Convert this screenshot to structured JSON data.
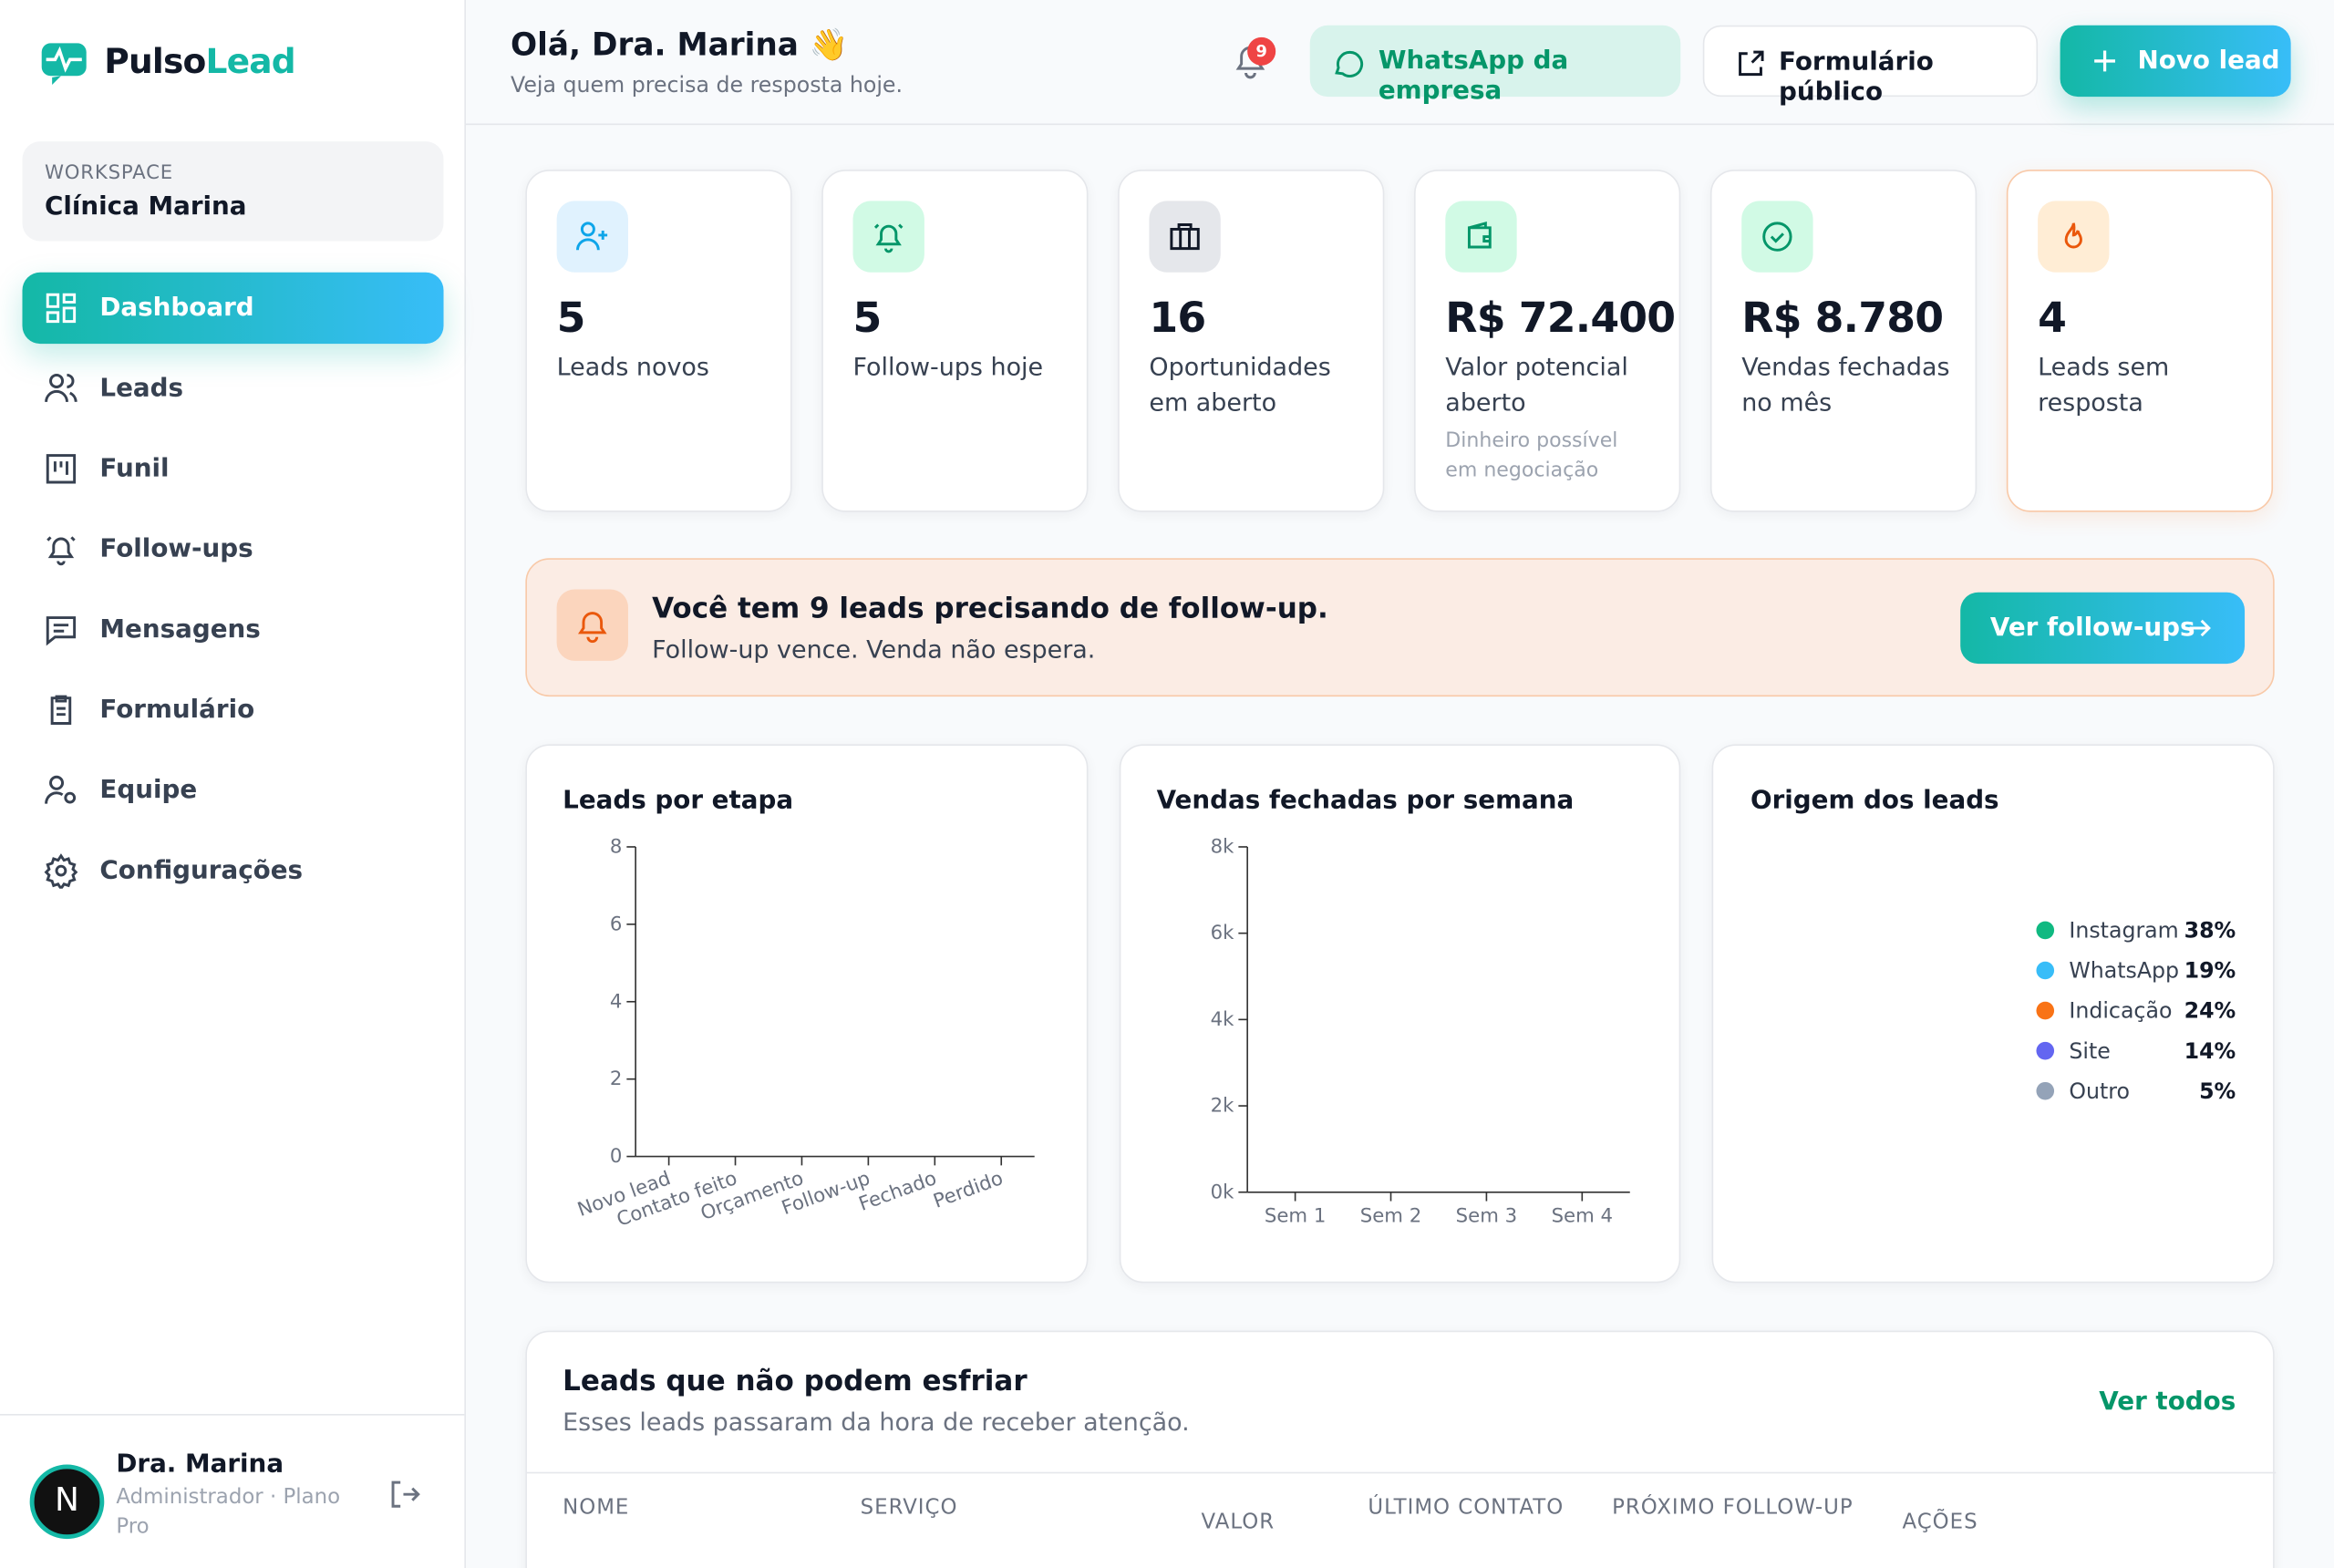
{
  "sidebar": {
    "brand_a": "Pulso",
    "brand_b": "Lead",
    "workspace_label": "WORKSPACE",
    "workspace": "Clínica Marina",
    "nav": [
      "Dashboard",
      "Leads",
      "Funil",
      "Follow-ups",
      "Mensagens",
      "Formulário",
      "Equipe",
      "Configurações"
    ],
    "user": {
      "initial": "N",
      "name": "Dra. Marina",
      "role": "Administrador · Plano Pro"
    }
  },
  "header": {
    "greeting": "Olá, Dra. Marina 👋",
    "subtitle": "Veja quem precisa de resposta hoje.",
    "notifications": "9",
    "buttons": [
      "WhatsApp da empresa",
      "Formulário público",
      "Novo lead"
    ]
  },
  "kpis": [
    {
      "value": "5",
      "label": "Leads novos"
    },
    {
      "value": "5",
      "label": "Follow-ups hoje"
    },
    {
      "value": "16",
      "label": "Oportunidades em aberto"
    },
    {
      "value": "R$ 72.400",
      "label": "Valor potencial aberto",
      "note": "Dinheiro possível em negociação"
    },
    {
      "value": "R$ 8.780",
      "label": "Vendas fechadas no mês"
    },
    {
      "value": "4",
      "label": "Leads sem resposta"
    }
  ],
  "alert": {
    "title": "Você tem 9 leads precisando de follow-up.",
    "text": "Follow-up vence. Venda não espera.",
    "button": "Ver follow-ups"
  },
  "chart_data": [
    {
      "type": "bar",
      "title": "Leads por etapa",
      "categories": [
        "Novo lead",
        "Contato feito",
        "Orçamento",
        "Follow-up",
        "Fechado",
        "Perdido"
      ],
      "ylim": [
        0,
        8
      ],
      "yticks": [
        0,
        2,
        4,
        6,
        8
      ]
    },
    {
      "type": "bar",
      "title": "Vendas fechadas por semana",
      "categories": [
        "Sem 1",
        "Sem 2",
        "Sem 3",
        "Sem 4"
      ],
      "ylim": [
        0,
        8000
      ],
      "yticks": [
        {
          "value": 0,
          "label": "0k"
        },
        {
          "value": 2000,
          "label": "2k"
        },
        {
          "value": 4000,
          "label": "4k"
        },
        {
          "value": 6000,
          "label": "6k"
        },
        {
          "value": 8000,
          "label": "8k"
        }
      ]
    },
    {
      "type": "pie",
      "title": "Origem dos leads",
      "categories": [
        "Instagram",
        "WhatsApp",
        "Indicação",
        "Site",
        "Outro"
      ],
      "values": [
        38,
        19,
        24,
        14,
        5
      ],
      "value_labels": [
        "38%",
        "19%",
        "24%",
        "14%",
        "5%"
      ],
      "colors": [
        "#10b981",
        "#38bdf8",
        "#f97316",
        "#6366f1",
        "#94a3b8"
      ]
    }
  ],
  "table": {
    "title": "Leads que não podem esfriar",
    "subtitle": "Esses leads passaram da hora de receber atenção.",
    "link": "Ver todos",
    "columns": [
      "NOME",
      "SERVIÇO",
      "VALOR",
      "ÚLTIMO CONTATO",
      "PRÓXIMO FOLLOW-UP",
      "AÇÕES"
    ]
  }
}
